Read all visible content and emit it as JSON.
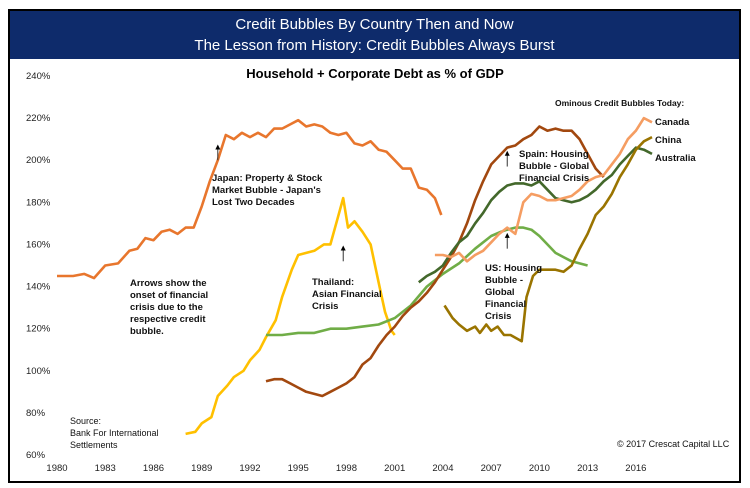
{
  "header": {
    "title": "Credit Bubbles By Country Then and Now",
    "subtitle": "The Lesson from History: Credit Bubbles Always Burst"
  },
  "chart_data": {
    "type": "line",
    "title": "Household + Corporate Debt as % of GDP",
    "xlabel": "",
    "ylabel": "",
    "xlim": [
      1980,
      2019
    ],
    "ylim": [
      60,
      240
    ],
    "x_ticks": [
      "1980",
      "1983",
      "1986",
      "1989",
      "1992",
      "1995",
      "1998",
      "2001",
      "2004",
      "2007",
      "2010",
      "2013",
      "2016"
    ],
    "y_ticks": [
      "60%",
      "80%",
      "100%",
      "120%",
      "140%",
      "160%",
      "180%",
      "200%",
      "220%",
      "240%"
    ],
    "grid": false,
    "legend_title": "Ominous Credit Bubbles Today:",
    "series": [
      {
        "name": "Japan",
        "color": "#E8762D",
        "x": [
          1980,
          1981,
          1981.7,
          1982.3,
          1983,
          1983.8,
          1984.5,
          1985,
          1985.5,
          1986,
          1986.5,
          1987,
          1987.5,
          1988,
          1988.5,
          1989,
          1989.5,
          1990,
          1990.5,
          1991,
          1991.5,
          1992,
          1992.5,
          1993,
          1993.5,
          1994,
          1994.5,
          1995,
          1995.5,
          1996,
          1996.5,
          1997,
          1997.5,
          1998,
          1998.5,
          1999,
          1999.5,
          2000,
          2000.5,
          2001,
          2001.5,
          2002,
          2002.5,
          2003,
          2003.5,
          2003.9
        ],
        "y": [
          145,
          145,
          146,
          144,
          150,
          151,
          157,
          158,
          163,
          162,
          166,
          167,
          165,
          168,
          168,
          178,
          190,
          200,
          212,
          210,
          213,
          211,
          213,
          211,
          215,
          215,
          217,
          219,
          216,
          217,
          216,
          213,
          212,
          213,
          208,
          207,
          209,
          205,
          204,
          200,
          196,
          196,
          187,
          186,
          182,
          174
        ]
      },
      {
        "name": "Thailand",
        "color": "#FFC000",
        "x": [
          1988,
          1988.6,
          1989,
          1989.6,
          1990,
          1990.6,
          1991,
          1991.6,
          1992,
          1992.6,
          1993,
          1993.6,
          1994,
          1994.6,
          1995,
          1995.5,
          1996,
          1996.6,
          1997,
          1997.4,
          1997.8,
          1998.1,
          1998.5,
          1999,
          1999.5,
          2000,
          2000.4,
          2000.8,
          2001
        ],
        "y": [
          70,
          71,
          75,
          78,
          88,
          93,
          97,
          100,
          105,
          110,
          116,
          124,
          135,
          148,
          155,
          156,
          157,
          160,
          160,
          171,
          182,
          168,
          171,
          166,
          160,
          142,
          128,
          119,
          117
        ]
      },
      {
        "name": "US",
        "color": "#70AD47",
        "x": [
          1993,
          1994,
          1995,
          1996,
          1997,
          1998,
          1999,
          2000,
          2001,
          2002,
          2003,
          2004,
          2005,
          2006,
          2007,
          2007.6,
          2008,
          2008.5,
          2009,
          2009.5,
          2010,
          2010.5,
          2011,
          2011.5,
          2012,
          2012.5,
          2013
        ],
        "y": [
          117,
          117,
          118,
          118,
          120,
          120,
          121,
          122,
          125,
          131,
          140,
          146,
          151,
          158,
          164,
          166,
          167,
          168,
          168,
          167,
          164,
          160,
          156,
          154,
          152,
          151,
          150
        ]
      },
      {
        "name": "Spain",
        "color": "#A2480F",
        "x": [
          1993,
          1993.5,
          1994,
          1994.5,
          1995,
          1995.5,
          1996,
          1996.5,
          1997,
          1997.5,
          1998,
          1998.5,
          1999,
          1999.5,
          2000,
          2000.5,
          2001,
          2001.5,
          2002,
          2002.5,
          2003,
          2003.5,
          2004,
          2004.5,
          2005,
          2005.5,
          2006,
          2006.5,
          2007,
          2007.5,
          2008,
          2008.5,
          2009,
          2009.5,
          2010,
          2010.5,
          2011,
          2011.5,
          2012,
          2012.5,
          2013,
          2013.5,
          2014
        ],
        "y": [
          95,
          96,
          96,
          94,
          92,
          90,
          89,
          88,
          90,
          92,
          94,
          97,
          103,
          106,
          112,
          117,
          121,
          126,
          130,
          133,
          137,
          142,
          148,
          154,
          161,
          170,
          181,
          190,
          198,
          202,
          206,
          207,
          210,
          212,
          216,
          214,
          215,
          214,
          214,
          210,
          203,
          196,
          192
        ]
      },
      {
        "name": "Australia",
        "color": "#43682B",
        "x": [
          2002.5,
          2003,
          2003.5,
          2004,
          2004.5,
          2005,
          2005.5,
          2006,
          2006.5,
          2007,
          2007.5,
          2008,
          2008.5,
          2009,
          2009.5,
          2010,
          2010.5,
          2011,
          2011.5,
          2012,
          2012.5,
          2013,
          2013.5,
          2014,
          2014.5,
          2015,
          2015.5,
          2016,
          2016.5,
          2017
        ],
        "y": [
          142,
          145,
          147,
          150,
          156,
          161,
          164,
          170,
          175,
          181,
          185,
          188,
          189,
          189,
          188,
          190,
          186,
          182,
          181,
          180,
          181,
          183,
          186,
          190,
          193,
          198,
          202,
          206,
          205,
          203
        ]
      },
      {
        "name": "Canada",
        "color": "#F59D62",
        "x": [
          2003.5,
          2004,
          2004.5,
          2005,
          2005.5,
          2006,
          2006.5,
          2007,
          2007.5,
          2008,
          2008.5,
          2009,
          2009.5,
          2010,
          2010.5,
          2011,
          2011.5,
          2012,
          2012.5,
          2013,
          2013.5,
          2014,
          2014.5,
          2015,
          2015.5,
          2016,
          2016.5,
          2017
        ],
        "y": [
          155,
          155,
          154,
          156,
          152,
          155,
          157,
          161,
          165,
          168,
          165,
          180,
          184,
          183,
          181,
          181,
          182,
          183,
          186,
          190,
          192,
          193,
          198,
          203,
          210,
          214,
          220,
          218
        ]
      },
      {
        "name": "China",
        "color": "#9A7400",
        "x": [
          2004.1,
          2004.6,
          2005,
          2005.5,
          2006,
          2006.3,
          2006.7,
          2007,
          2007.4,
          2007.8,
          2008.2,
          2008.9,
          2009.2,
          2009.6,
          2010,
          2010.5,
          2011,
          2011.5,
          2012,
          2012.5,
          2013,
          2013.5,
          2014,
          2014.5,
          2015,
          2015.5,
          2016,
          2016.5,
          2017
        ],
        "y": [
          131,
          125,
          122,
          119,
          121,
          118,
          122,
          119,
          121,
          117,
          117,
          114,
          135,
          145,
          148,
          148,
          148,
          147,
          150,
          158,
          165,
          174,
          178,
          184,
          192,
          198,
          205,
          209,
          211
        ]
      }
    ],
    "annotations": [
      "Japan: Property & Stock Market Bubble - Japan's Lost Two Decades",
      "Thailand: Asian Financial Crisis",
      "Spain: Housing Bubble - Global Financial Crisis",
      "US: Housing Bubble - Global Financial Crisis",
      "Arrows show the onset of financial crisis due to the respective credit bubble."
    ]
  },
  "labels": {
    "japan": [
      "Japan: Property & Stock",
      "Market Bubble - Japan's",
      "Lost Two Decades"
    ],
    "thailand": [
      "Thailand:",
      "Asian Financial",
      "Crisis"
    ],
    "spain": [
      "Spain: Housing",
      "Bubble - Global",
      "Financial Crisis"
    ],
    "us": [
      "US: Housing",
      "Bubble -",
      "Global",
      "Financial",
      "Crisis"
    ],
    "arrows_note": [
      "Arrows show the",
      "onset of financial",
      "crisis due to the",
      "respective credit",
      "bubble."
    ],
    "source": [
      "Source:",
      "Bank For International",
      "Settlements"
    ],
    "copyright": "© 2017 Crescat Capital LLC"
  }
}
